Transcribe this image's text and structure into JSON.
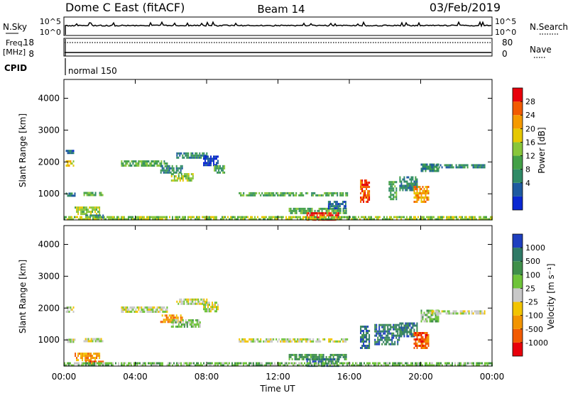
{
  "header": {
    "title": "Dome C East (fitACF)",
    "beam": "Beam 14",
    "date": "03/Feb/2019"
  },
  "ops_panel": {
    "nsky_label": "N.Sky",
    "nsky_ticks": [
      "10^5",
      "10^0"
    ],
    "nsearch_label": "N.Search",
    "nsearch_ticks": [
      "10^5",
      "10^0"
    ],
    "freq_label": "Freq.",
    "freq_unit": "[MHz]",
    "freq_ticks": [
      "18",
      "8"
    ],
    "nave_label": "Nave",
    "nave_ticks": [
      "80",
      "0"
    ],
    "cpid_label": "CPID",
    "cpid_value": "normal 150"
  },
  "chart_data": [
    {
      "type": "heatmap",
      "name": "power",
      "ylabel": "Slant Range [km]",
      "yticks": [
        "4000",
        "3000",
        "2000",
        "1000"
      ],
      "ylim": [
        180,
        4590
      ],
      "xlim": [
        0,
        24
      ],
      "colorbar_label": "Power [dB]",
      "colorbar_ticks": [
        "28",
        "24",
        "20",
        "16",
        "12",
        "8",
        "4"
      ],
      "colorbar_colors": [
        "#e8000b",
        "#f25a00",
        "#f59a00",
        "#e6c800",
        "#88c63a",
        "#43a047",
        "#2f8a66",
        "#1e5aa0",
        "#0a28d2"
      ],
      "regions": [
        {
          "t0": 0.1,
          "t1": 0.5,
          "r0": 1900,
          "r1": 2050,
          "level": 3
        },
        {
          "t0": 0.1,
          "t1": 0.5,
          "r0": 2250,
          "r1": 2380,
          "level": 7
        },
        {
          "t0": 0.1,
          "t1": 0.6,
          "r0": 970,
          "r1": 1040,
          "level": 6
        },
        {
          "t0": 1.1,
          "t1": 2.2,
          "r0": 990,
          "r1": 1060,
          "level": 5
        },
        {
          "t0": 0.6,
          "t1": 2.0,
          "r0": 350,
          "r1": 600,
          "level": 4
        },
        {
          "t0": 1.2,
          "t1": 2.2,
          "r0": 250,
          "r1": 350,
          "level": 6
        },
        {
          "t0": 3.2,
          "t1": 5.8,
          "r0": 1850,
          "r1": 2050,
          "level": 5
        },
        {
          "t0": 5.4,
          "t1": 6.6,
          "r0": 1650,
          "r1": 1900,
          "level": 6
        },
        {
          "t0": 6.0,
          "t1": 7.2,
          "r0": 1400,
          "r1": 1650,
          "level": 4
        },
        {
          "t0": 6.3,
          "t1": 8.0,
          "r0": 2100,
          "r1": 2300,
          "level": 6
        },
        {
          "t0": 7.8,
          "t1": 8.6,
          "r0": 1900,
          "r1": 2200,
          "level": 8
        },
        {
          "t0": 8.4,
          "t1": 9.0,
          "r0": 1650,
          "r1": 1900,
          "level": 5
        },
        {
          "t0": 9.8,
          "t1": 15.9,
          "r0": 980,
          "r1": 1050,
          "level": 5
        },
        {
          "t0": 12.6,
          "t1": 15.8,
          "r0": 420,
          "r1": 560,
          "level": 5
        },
        {
          "t0": 13.6,
          "t1": 15.4,
          "r0": 200,
          "r1": 420,
          "level": 0
        },
        {
          "t0": 14.8,
          "t1": 15.8,
          "r0": 560,
          "r1": 780,
          "level": 7
        },
        {
          "t0": 16.6,
          "t1": 17.1,
          "r0": 750,
          "r1": 1450,
          "level": 1
        },
        {
          "t0": 18.2,
          "t1": 18.6,
          "r0": 800,
          "r1": 1400,
          "level": 5
        },
        {
          "t0": 18.8,
          "t1": 19.8,
          "r0": 1100,
          "r1": 1550,
          "level": 6
        },
        {
          "t0": 19.6,
          "t1": 20.4,
          "r0": 750,
          "r1": 1250,
          "level": 2
        },
        {
          "t0": 20.0,
          "t1": 21.0,
          "r0": 1700,
          "r1": 1950,
          "level": 6
        },
        {
          "t0": 20.6,
          "t1": 23.6,
          "r0": 1800,
          "r1": 1930,
          "level": 6
        },
        {
          "t0": 0.0,
          "t1": 24.0,
          "r0": 180,
          "r1": 300,
          "level": 4
        }
      ]
    },
    {
      "type": "heatmap",
      "name": "velocity",
      "ylabel": "Slant Range [km]",
      "yticks": [
        "4000",
        "3000",
        "2000",
        "1000"
      ],
      "ylim": [
        180,
        4590
      ],
      "xlim": [
        0,
        24
      ],
      "xticks": [
        "00:00",
        "04:00",
        "08:00",
        "12:00",
        "16:00",
        "20:00",
        "00:00"
      ],
      "xlabel": "Time UT",
      "colorbar_label": "Velocity [m s⁻¹]",
      "colorbar_ticks": [
        "1000",
        "500",
        "100",
        "25",
        "-25",
        "-100",
        "-500",
        "-1000"
      ],
      "colorbar_colors": [
        "#1e3fbf",
        "#2f7a66",
        "#3f8f4a",
        "#6fc43a",
        "#c8c8c8",
        "#f2c400",
        "#f29400",
        "#f25a00",
        "#e8000b"
      ],
      "regions": [
        {
          "t0": 0.1,
          "t1": 0.5,
          "r0": 1900,
          "r1": 2050,
          "level": 4
        },
        {
          "t0": 0.1,
          "t1": 0.6,
          "r0": 970,
          "r1": 1040,
          "level": 4
        },
        {
          "t0": 1.1,
          "t1": 2.2,
          "r0": 990,
          "r1": 1060,
          "level": 4
        },
        {
          "t0": 0.6,
          "t1": 2.0,
          "r0": 350,
          "r1": 600,
          "level": 6
        },
        {
          "t0": 1.2,
          "t1": 2.2,
          "r0": 250,
          "r1": 350,
          "level": 7
        },
        {
          "t0": 3.2,
          "t1": 5.8,
          "r0": 1850,
          "r1": 2050,
          "level": 4
        },
        {
          "t0": 5.4,
          "t1": 6.6,
          "r0": 1550,
          "r1": 1800,
          "level": 6
        },
        {
          "t0": 6.0,
          "t1": 7.6,
          "r0": 1400,
          "r1": 1650,
          "level": 3
        },
        {
          "t0": 6.3,
          "t1": 8.0,
          "r0": 2100,
          "r1": 2300,
          "level": 4
        },
        {
          "t0": 7.8,
          "t1": 8.6,
          "r0": 1900,
          "r1": 2200,
          "level": 4
        },
        {
          "t0": 9.8,
          "t1": 15.9,
          "r0": 980,
          "r1": 1050,
          "level": 4
        },
        {
          "t0": 12.6,
          "t1": 15.8,
          "r0": 420,
          "r1": 560,
          "level": 2
        },
        {
          "t0": 13.6,
          "t1": 15.4,
          "r0": 200,
          "r1": 420,
          "level": 1
        },
        {
          "t0": 16.6,
          "t1": 17.1,
          "r0": 750,
          "r1": 1450,
          "level": 1
        },
        {
          "t0": 17.4,
          "t1": 18.8,
          "r0": 850,
          "r1": 1500,
          "level": 1
        },
        {
          "t0": 18.8,
          "t1": 19.8,
          "r0": 1100,
          "r1": 1550,
          "level": 1
        },
        {
          "t0": 19.6,
          "t1": 20.4,
          "r0": 750,
          "r1": 1250,
          "level": 7
        },
        {
          "t0": 20.0,
          "t1": 21.0,
          "r0": 1600,
          "r1": 1950,
          "level": 3
        },
        {
          "t0": 20.6,
          "t1": 23.6,
          "r0": 1800,
          "r1": 1930,
          "level": 4
        },
        {
          "t0": 0.0,
          "t1": 24.0,
          "r0": 180,
          "r1": 300,
          "level": 3
        }
      ]
    }
  ]
}
